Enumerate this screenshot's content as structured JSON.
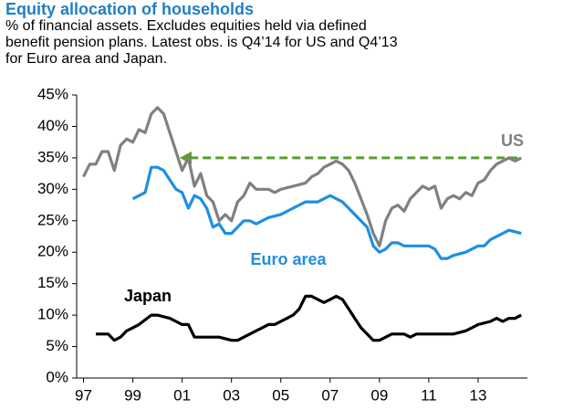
{
  "chart_data": {
    "type": "line",
    "title": "Equity allocation of households",
    "subtitle": "% of financial assets. Excludes equities held via defined benefit pension plans. Latest obs. is Q4’14 for US and Q4’13 for Euro area and Japan.",
    "xlim": [
      1996.5,
      2015
    ],
    "xticks": [
      {
        "value": 1997,
        "label": "97"
      },
      {
        "value": 1999,
        "label": "99"
      },
      {
        "value": 2001,
        "label": "01"
      },
      {
        "value": 2003,
        "label": "03"
      },
      {
        "value": 2005,
        "label": "05"
      },
      {
        "value": 2007,
        "label": "07"
      },
      {
        "value": 2009,
        "label": "09"
      },
      {
        "value": 2011,
        "label": "11"
      },
      {
        "value": 2013,
        "label": "13"
      }
    ],
    "ylim": [
      0,
      45
    ],
    "yticks": [
      {
        "value": 0,
        "label": "0%"
      },
      {
        "value": 5,
        "label": "5%"
      },
      {
        "value": 10,
        "label": "10%"
      },
      {
        "value": 15,
        "label": "15%"
      },
      {
        "value": 20,
        "label": "20%"
      },
      {
        "value": 25,
        "label": "25%"
      },
      {
        "value": 30,
        "label": "30%"
      },
      {
        "value": 35,
        "label": "35%"
      },
      {
        "value": 40,
        "label": "40%"
      },
      {
        "value": 45,
        "label": "45%"
      }
    ],
    "arrow": {
      "color": "#5a9e2f",
      "x": [
        2014.6,
        2000.9
      ],
      "y": 35
    },
    "series": [
      {
        "name": "US",
        "color": "#808080",
        "x": [
          1997.0,
          1997.25,
          1997.5,
          1997.75,
          1998.0,
          1998.25,
          1998.5,
          1998.75,
          1999.0,
          1999.25,
          1999.5,
          1999.75,
          2000.0,
          2000.25,
          2000.5,
          2000.75,
          2001.0,
          2001.25,
          2001.5,
          2001.75,
          2002.0,
          2002.25,
          2002.5,
          2002.75,
          2003.0,
          2003.25,
          2003.5,
          2003.75,
          2004.0,
          2004.5,
          2004.75,
          2005.0,
          2005.5,
          2006.0,
          2006.25,
          2006.5,
          2006.75,
          2007.0,
          2007.25,
          2007.5,
          2007.75,
          2008.0,
          2008.25,
          2008.5,
          2008.75,
          2009.0,
          2009.25,
          2009.5,
          2009.75,
          2010.0,
          2010.25,
          2010.5,
          2010.75,
          2011.0,
          2011.25,
          2011.5,
          2011.75,
          2012.0,
          2012.25,
          2012.5,
          2012.75,
          2013.0,
          2013.25,
          2013.5,
          2013.75,
          2014.0,
          2014.25,
          2014.5,
          2014.75
        ],
        "values": [
          32,
          34,
          34,
          36,
          36,
          33,
          37,
          38,
          37.5,
          39.5,
          39,
          42,
          43,
          42,
          39,
          36,
          33,
          35,
          30.5,
          32.5,
          29,
          28,
          25,
          26,
          25,
          28,
          29,
          31,
          30,
          30,
          29.5,
          30,
          30.5,
          31,
          32,
          32.5,
          33.5,
          34,
          34.5,
          34,
          33,
          31,
          28.5,
          26,
          23,
          21,
          25,
          27,
          27.5,
          26.5,
          28.5,
          29.5,
          30.5,
          30,
          30.5,
          27,
          28.5,
          29,
          28.5,
          29.5,
          29,
          31,
          31.5,
          33,
          34,
          34.5,
          35,
          34.5,
          35
        ]
      },
      {
        "name": "Euro area",
        "color": "#1f8fe0",
        "x": [
          1999.0,
          1999.5,
          1999.75,
          2000.0,
          2000.25,
          2000.5,
          2000.75,
          2001.0,
          2001.25,
          2001.5,
          2001.75,
          2002.0,
          2002.25,
          2002.5,
          2002.75,
          2003.0,
          2003.25,
          2003.5,
          2003.75,
          2004.0,
          2004.5,
          2005.0,
          2005.5,
          2006.0,
          2006.5,
          2007.0,
          2007.5,
          2007.75,
          2008.0,
          2008.5,
          2008.75,
          2009.0,
          2009.25,
          2009.5,
          2009.75,
          2010.0,
          2010.5,
          2011.0,
          2011.25,
          2011.5,
          2011.75,
          2012.0,
          2012.5,
          2013.0,
          2013.25,
          2013.5,
          2014.0,
          2014.25,
          2014.75
        ],
        "values": [
          28.5,
          29.5,
          33.5,
          33.5,
          33,
          31.5,
          30,
          29.5,
          27,
          29,
          28.5,
          27,
          24,
          24.5,
          23,
          23,
          24,
          25,
          25,
          24.5,
          25.5,
          26,
          27,
          28,
          28,
          29,
          28,
          27,
          26,
          24,
          21,
          20,
          20.5,
          21.5,
          21.5,
          21,
          21,
          21,
          20.5,
          19,
          19,
          19.5,
          20,
          21,
          21,
          22,
          23,
          23.5,
          23
        ]
      },
      {
        "name": "Japan",
        "color": "#000000",
        "x": [
          1997.5,
          1997.75,
          1998.0,
          1998.25,
          1998.5,
          1998.75,
          1999.0,
          1999.25,
          1999.75,
          2000.0,
          2000.5,
          2000.75,
          2001.0,
          2001.25,
          2001.5,
          2002.0,
          2002.5,
          2003.0,
          2003.25,
          2003.5,
          2003.75,
          2004.0,
          2004.25,
          2004.5,
          2004.75,
          2005.0,
          2005.25,
          2005.5,
          2005.75,
          2006.0,
          2006.25,
          2006.5,
          2006.75,
          2007.0,
          2007.25,
          2007.5,
          2007.75,
          2008.0,
          2008.25,
          2008.5,
          2008.75,
          2009.0,
          2009.5,
          2010.0,
          2010.25,
          2010.5,
          2011.0,
          2011.5,
          2012.0,
          2012.5,
          2012.75,
          2013.0,
          2013.5,
          2013.75,
          2014.0,
          2014.25,
          2014.5,
          2014.75
        ],
        "values": [
          7,
          7,
          7,
          6,
          6.5,
          7.5,
          8,
          8.5,
          10,
          10,
          9.5,
          9,
          8.5,
          8.5,
          6.5,
          6.5,
          6.5,
          6,
          6,
          6.5,
          7,
          7.5,
          8,
          8.5,
          8.5,
          9,
          9.5,
          10,
          11,
          13,
          13,
          12.5,
          12,
          12.5,
          13,
          12.5,
          11,
          9.5,
          8,
          7,
          6,
          6,
          7,
          7,
          6.5,
          7,
          7,
          7,
          7,
          7.5,
          8,
          8.5,
          9,
          9.5,
          9,
          9.5,
          9.5,
          10
        ]
      }
    ]
  }
}
